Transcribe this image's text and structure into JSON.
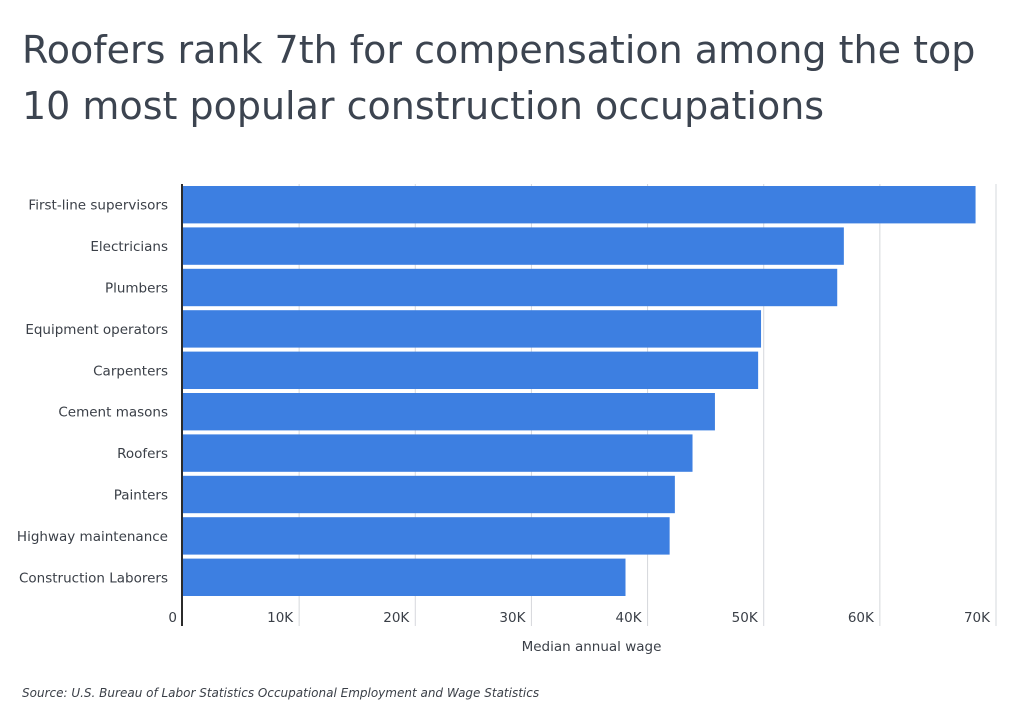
{
  "chart_data": {
    "type": "bar",
    "orientation": "horizontal",
    "title": "Roofers rank 7th for compensation among the top 10 most popular construction occupations",
    "categories": [
      "First-line supervisors",
      "Electricians",
      "Plumbers",
      "Equipment operators",
      "Carpenters",
      "Cement masons",
      "Roofers",
      "Painters",
      "Highway maintenance",
      "Construction Laborers"
    ],
    "values": [
      68240,
      56900,
      56330,
      49770,
      49520,
      45800,
      43870,
      42350,
      41900,
      38100
    ],
    "xlabel": "Median annual wage",
    "ylabel": "",
    "xlim": [
      0,
      70000
    ],
    "ticks": [
      0,
      10000,
      20000,
      30000,
      40000,
      50000,
      60000,
      70000
    ],
    "tick_labels": [
      "0",
      "10K",
      "20K",
      "30K",
      "40K",
      "50K",
      "60K",
      "70K"
    ],
    "grid": true,
    "bar_color": "#3d7fe1",
    "grid_color": "#d6d8dc",
    "axis_color": "#2b2b2b"
  },
  "source": "Source:  U.S. Bureau of Labor Statistics Occupational Employment and Wage Statistics"
}
